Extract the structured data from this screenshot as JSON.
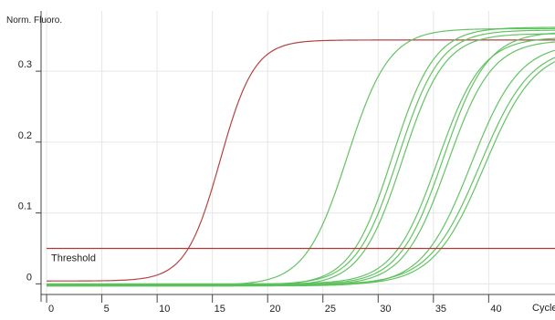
{
  "chart_data": {
    "type": "line",
    "title": "",
    "ylabel": "Norm. Fluoro.",
    "xlabel": "Cycle",
    "xlim": [
      -0.5,
      46
    ],
    "ylim": [
      -0.015,
      0.385
    ],
    "grid": true,
    "x_ticks": [
      0,
      5,
      10,
      15,
      20,
      25,
      30,
      35,
      40
    ],
    "x_tick_labels": [
      "0",
      "5",
      "10",
      "15",
      "20",
      "25",
      "30",
      "35",
      "40"
    ],
    "y_ticks": [
      0,
      0.1,
      0.2,
      0.3
    ],
    "y_tick_labels": [
      "0",
      "0.1",
      "0.2",
      "0.3"
    ],
    "threshold": {
      "label": "Threshold",
      "value": 0.05,
      "color": "#b03a3a"
    },
    "colors": {
      "reference": "#b03a3a",
      "samples": "#5cc05c",
      "grid": "#e6e6e6",
      "axis": "#444444"
    },
    "series": [
      {
        "color": "#b03a3a",
        "curve": {
          "base": 0.004,
          "plateau": 0.344,
          "midpoint": 15.7,
          "slope": 1.55
        }
      },
      {
        "color": "#5cc05c",
        "curve": {
          "base": -0.002,
          "plateau": 0.36,
          "midpoint": 27.2,
          "slope": 1.9
        }
      },
      {
        "color": "#5cc05c",
        "curve": {
          "base": -0.002,
          "plateau": 0.362,
          "midpoint": 31.3,
          "slope": 1.9
        }
      },
      {
        "color": "#5cc05c",
        "curve": {
          "base": -0.001,
          "plateau": 0.358,
          "midpoint": 31.8,
          "slope": 1.9
        }
      },
      {
        "color": "#5cc05c",
        "curve": {
          "base": -0.003,
          "plateau": 0.353,
          "midpoint": 32.2,
          "slope": 1.9
        }
      },
      {
        "color": "#5cc05c",
        "curve": {
          "base": 0.0,
          "plateau": 0.348,
          "midpoint": 35.4,
          "slope": 2.0
        }
      },
      {
        "color": "#5cc05c",
        "curve": {
          "base": -0.001,
          "plateau": 0.356,
          "midpoint": 35.9,
          "slope": 2.0
        }
      },
      {
        "color": "#5cc05c",
        "curve": {
          "base": -0.002,
          "plateau": 0.344,
          "midpoint": 36.3,
          "slope": 2.0
        }
      },
      {
        "color": "#5cc05c",
        "curve": {
          "base": -0.003,
          "plateau": 0.34,
          "midpoint": 38.4,
          "slope": 2.2
        }
      },
      {
        "color": "#5cc05c",
        "curve": {
          "base": -0.001,
          "plateau": 0.336,
          "midpoint": 39.2,
          "slope": 2.3
        }
      },
      {
        "color": "#5cc05c",
        "curve": {
          "base": -0.002,
          "plateau": 0.333,
          "midpoint": 39.6,
          "slope": 2.3
        }
      }
    ]
  }
}
